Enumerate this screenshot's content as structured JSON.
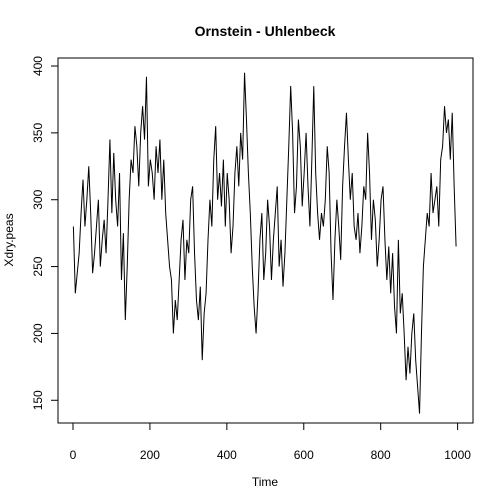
{
  "chart_data": {
    "type": "line",
    "title": "Ornstein - Uhlenbeck",
    "xlabel": "Time",
    "ylabel": "Xdry.peas",
    "color": "#000000",
    "xlim": [
      -39,
      1040
    ],
    "ylim": [
      133,
      406
    ],
    "xticks": [
      0,
      200,
      400,
      600,
      800,
      1000
    ],
    "yticks": [
      150,
      200,
      250,
      300,
      350,
      400
    ],
    "x": [
      1,
      6,
      11,
      16,
      21,
      26,
      31,
      36,
      41,
      46,
      51,
      56,
      61,
      66,
      71,
      76,
      81,
      86,
      91,
      96,
      101,
      106,
      111,
      116,
      121,
      126,
      131,
      136,
      141,
      146,
      151,
      156,
      161,
      166,
      171,
      176,
      181,
      186,
      191,
      196,
      201,
      206,
      211,
      216,
      221,
      226,
      231,
      236,
      241,
      246,
      251,
      256,
      261,
      266,
      271,
      276,
      281,
      286,
      291,
      296,
      301,
      306,
      311,
      316,
      321,
      326,
      331,
      336,
      341,
      346,
      351,
      356,
      361,
      366,
      371,
      376,
      381,
      386,
      391,
      396,
      401,
      406,
      411,
      416,
      421,
      426,
      431,
      436,
      441,
      446,
      451,
      456,
      461,
      466,
      471,
      476,
      481,
      486,
      491,
      496,
      501,
      506,
      511,
      516,
      521,
      526,
      531,
      536,
      541,
      546,
      551,
      556,
      561,
      566,
      571,
      576,
      581,
      586,
      591,
      596,
      601,
      606,
      611,
      616,
      621,
      626,
      631,
      636,
      641,
      646,
      651,
      656,
      661,
      666,
      671,
      676,
      681,
      686,
      691,
      696,
      701,
      706,
      711,
      716,
      721,
      726,
      731,
      736,
      741,
      746,
      751,
      756,
      761,
      766,
      771,
      776,
      781,
      786,
      791,
      796,
      801,
      806,
      811,
      816,
      821,
      826,
      831,
      836,
      841,
      846,
      851,
      856,
      861,
      866,
      871,
      876,
      881,
      886,
      891,
      896,
      901,
      906,
      911,
      916,
      921,
      926,
      931,
      936,
      941,
      946,
      951,
      956,
      961,
      966,
      971,
      976,
      981,
      986,
      991,
      996
    ],
    "values": [
      280,
      230,
      245,
      260,
      290,
      315,
      280,
      300,
      325,
      290,
      245,
      260,
      280,
      300,
      250,
      270,
      285,
      260,
      300,
      345,
      290,
      335,
      300,
      280,
      320,
      240,
      275,
      210,
      250,
      300,
      330,
      320,
      355,
      340,
      310,
      350,
      370,
      345,
      392,
      310,
      330,
      320,
      300,
      340,
      320,
      345,
      300,
      330,
      290,
      270,
      250,
      240,
      200,
      225,
      210,
      240,
      270,
      285,
      240,
      270,
      260,
      300,
      310,
      260,
      225,
      210,
      235,
      180,
      215,
      230,
      270,
      300,
      280,
      330,
      355,
      300,
      320,
      295,
      330,
      280,
      320,
      300,
      260,
      280,
      320,
      340,
      310,
      350,
      330,
      395,
      360,
      320,
      290,
      250,
      220,
      200,
      230,
      270,
      290,
      240,
      260,
      300,
      280,
      240,
      270,
      290,
      310,
      250,
      270,
      235,
      260,
      300,
      340,
      385,
      350,
      290,
      310,
      360,
      340,
      295,
      320,
      350,
      310,
      280,
      330,
      385,
      320,
      290,
      270,
      290,
      280,
      300,
      340,
      320,
      260,
      225,
      270,
      300,
      280,
      255,
      310,
      340,
      365,
      330,
      300,
      320,
      280,
      270,
      290,
      260,
      280,
      310,
      300,
      350,
      320,
      270,
      300,
      285,
      250,
      270,
      300,
      310,
      270,
      240,
      265,
      230,
      260,
      220,
      200,
      270,
      215,
      230,
      200,
      165,
      190,
      170,
      200,
      215,
      180,
      160,
      140,
      200,
      250,
      270,
      290,
      280,
      320,
      290,
      300,
      310,
      280,
      330,
      340,
      370,
      350,
      360,
      330,
      365,
      310,
      265
    ]
  }
}
